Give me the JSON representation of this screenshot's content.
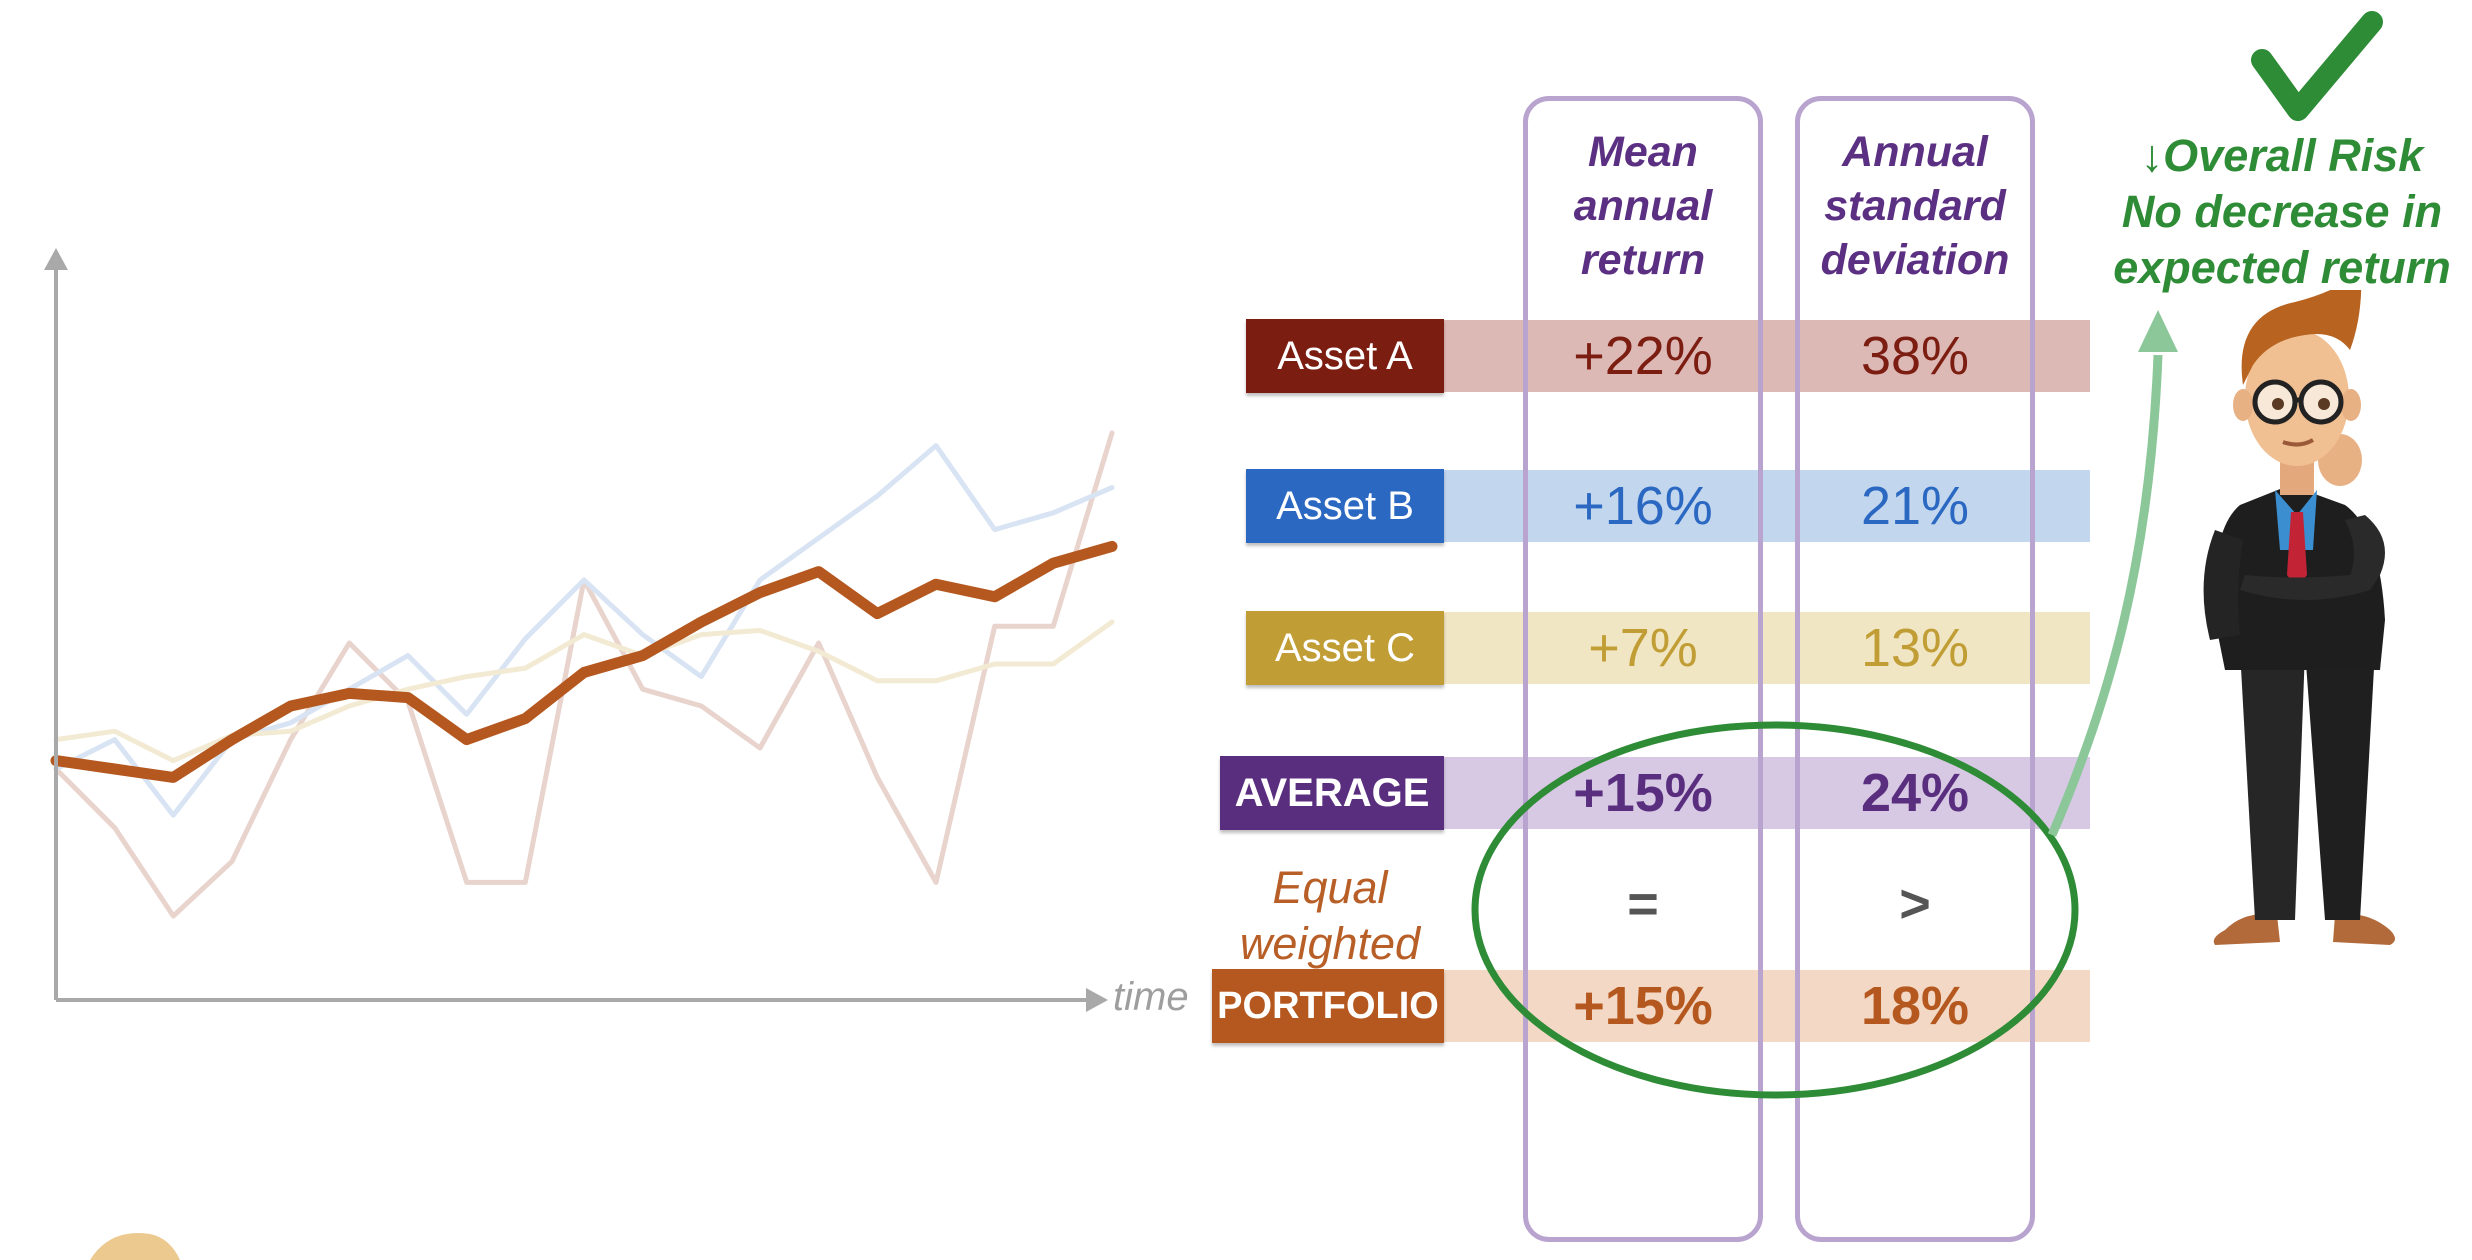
{
  "chart_data": {
    "type": "line",
    "xlabel": "time",
    "ylabel": "",
    "grid": false,
    "series": [
      {
        "key": "asset_a",
        "color": "#e8d3cd",
        "width": 5,
        "values": [
          0.55,
          0.41,
          0.2,
          0.33,
          0.62,
          0.85,
          0.71,
          0.28,
          0.28,
          1.0,
          0.74,
          0.7,
          0.6,
          0.85,
          0.53,
          0.28,
          0.89,
          0.89,
          1.35
        ]
      },
      {
        "key": "asset_b",
        "color": "#d8e4f3",
        "width": 5,
        "values": [
          0.55,
          0.62,
          0.44,
          0.62,
          0.66,
          0.74,
          0.82,
          0.68,
          0.86,
          1.0,
          0.87,
          0.77,
          1.0,
          1.1,
          1.2,
          1.32,
          1.12,
          1.16,
          1.22
        ]
      },
      {
        "key": "asset_c",
        "color": "#f3ead3",
        "width": 5,
        "values": [
          0.62,
          0.64,
          0.57,
          0.63,
          0.64,
          0.7,
          0.74,
          0.77,
          0.79,
          0.87,
          0.82,
          0.87,
          0.88,
          0.83,
          0.76,
          0.76,
          0.8,
          0.8,
          0.9
        ]
      },
      {
        "key": "portfolio",
        "color": "#b5581f",
        "width": 11,
        "values": [
          0.57,
          0.55,
          0.53,
          0.62,
          0.7,
          0.73,
          0.72,
          0.62,
          0.67,
          0.78,
          0.82,
          0.9,
          0.97,
          1.02,
          0.92,
          0.99,
          0.96,
          1.04,
          1.08
        ]
      }
    ]
  },
  "columns": {
    "mean": [
      "Mean",
      "annual",
      "return"
    ],
    "std": [
      "Annual",
      "standard",
      "deviation"
    ]
  },
  "rows": [
    {
      "label": "Asset A",
      "mean": "+22%",
      "std": "38%"
    },
    {
      "label": "Asset B",
      "mean": "+16%",
      "std": "21%"
    },
    {
      "label": "Asset C",
      "mean": "+7%",
      "std": "13%"
    },
    {
      "label": "AVERAGE",
      "mean": "+15%",
      "std": "24%"
    },
    {
      "label": "PORTFOLIO",
      "mean": "+15%",
      "std": "18%"
    }
  ],
  "comparison": {
    "mean": "=",
    "std": ">"
  },
  "portfolio_note": [
    "Equal",
    "weighted"
  ],
  "conclusion": [
    "↓Overall Risk",
    "No decrease in",
    "expected return"
  ],
  "colors": {
    "asset_a": "#7c1d12",
    "asset_b": "#2b68c2",
    "asset_c": "#c19d35",
    "average": "#5a2e7f",
    "portfolio": "#b5581f",
    "highlight": "#2e8b36",
    "column_border": "#b9a3cf"
  }
}
